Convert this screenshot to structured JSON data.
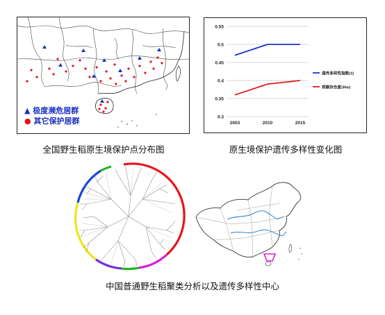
{
  "map_panel": {
    "legend": [
      {
        "symbol": "▲",
        "label": "极度濒危居群",
        "color": "#1a2fc0"
      },
      {
        "symbol": "●",
        "label": "其它保护居群",
        "color": "#e0141e"
      }
    ],
    "caption": "全国野生稻原生境保护点分布图"
  },
  "chart_panel": {
    "caption": "原生境保护遗传多样性变化图",
    "chart_data": {
      "type": "line",
      "x": [
        "2003",
        "2010",
        "2015"
      ],
      "ylim": [
        0.3,
        0.55
      ],
      "yticks": [
        "0.3",
        "0.35",
        "0.4",
        "0.45",
        "0.5",
        "0.55"
      ],
      "grid": true,
      "legend_position": "right",
      "series": [
        {
          "name": "遗传多样性指数(I)",
          "values": [
            0.47,
            0.5,
            0.5
          ],
          "color": "#2233cc"
        },
        {
          "name": "观察杂合度(Ho)",
          "values": [
            0.36,
            0.39,
            0.4
          ],
          "color": "#e01818"
        }
      ]
    }
  },
  "bottom": {
    "caption": "中国普通野生稻聚类分析以及遗传多样性中心"
  }
}
